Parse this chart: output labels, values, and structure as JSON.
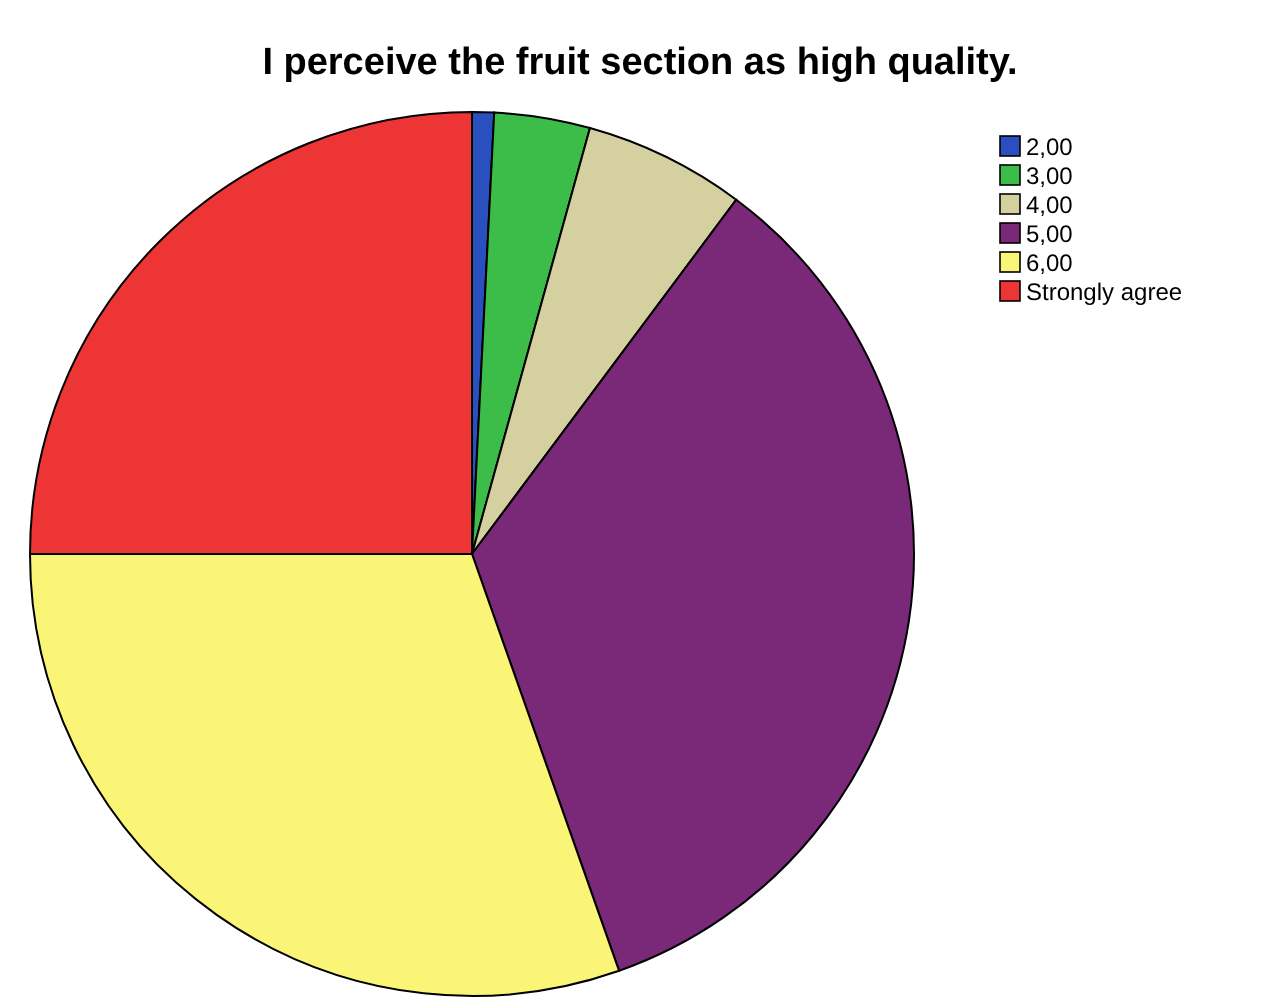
{
  "chart_data": {
    "type": "pie",
    "title": "I perceive the fruit section as high quality.",
    "categories": [
      "2,00",
      "3,00",
      "4,00",
      "5,00",
      "6,00",
      "Strongly agree"
    ],
    "values": [
      0.8,
      3.5,
      5.9,
      34.4,
      30.4,
      25
    ],
    "colors": [
      "#2a50c0",
      "#3cbd4a",
      "#d5d0a0",
      "#7a2878",
      "#fbf577",
      "#ee3535"
    ],
    "legend": "top right"
  }
}
